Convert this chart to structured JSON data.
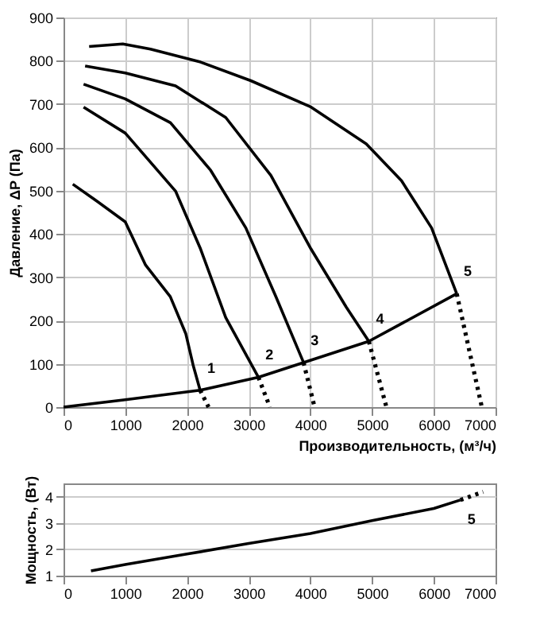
{
  "chart_data": [
    {
      "type": "line",
      "xlabel": "Производительность, (м³/ч)",
      "ylabel": "Давление, ΔP (Па)",
      "xlim": [
        0,
        7000
      ],
      "ylim": [
        0,
        900
      ],
      "xticks": [
        0,
        1000,
        2000,
        3000,
        4000,
        5000,
        6000,
        7000
      ],
      "yticks": [
        0,
        100,
        200,
        300,
        400,
        500,
        600,
        700,
        800,
        900
      ],
      "grid": true,
      "marker": "none",
      "series": [
        {
          "color": "#000000",
          "line_style": "solid",
          "x": [
            150,
            500,
            1000,
            1330,
            1730,
            1980,
            2100,
            2213
          ],
          "values": [
            515,
            480,
            428,
            328,
            255,
            170,
            97,
            39
          ]
        },
        {
          "color": "#000000",
          "line_style": "solid",
          "x": [
            325,
            1000,
            1815,
            2221,
            2628,
            3157
          ],
          "values": [
            693,
            633,
            499,
            365,
            207,
            69
          ]
        },
        {
          "color": "#000000",
          "line_style": "solid",
          "x": [
            325,
            1000,
            1733,
            2384,
            2954,
            3442,
            3889
          ],
          "values": [
            746,
            712,
            657,
            547,
            414,
            255,
            103
          ]
        },
        {
          "color": "#000000",
          "line_style": "solid",
          "x": [
            350,
            1000,
            1815,
            2628,
            3360,
            4011,
            4581,
            4947
          ],
          "values": [
            788,
            772,
            742,
            669,
            535,
            365,
            231,
            152
          ]
        },
        {
          "color": "#000000",
          "line_style": "solid",
          "x": [
            415,
            960,
            1408,
            2221,
            3035,
            4011,
            4906,
            5476,
            5964,
            6371
          ],
          "values": [
            833,
            839,
            827,
            797,
            754,
            693,
            608,
            523,
            414,
            262
          ]
        },
        {
          "color": "#000000",
          "line_style": "dotted",
          "x": [
            2213,
            2350
          ],
          "values": [
            39,
            0
          ]
        },
        {
          "color": "#000000",
          "line_style": "dotted",
          "x": [
            3157,
            3344
          ],
          "values": [
            69,
            0
          ]
        },
        {
          "color": "#000000",
          "line_style": "dotted",
          "x": [
            3889,
            4068
          ],
          "values": [
            103,
            0
          ]
        },
        {
          "color": "#000000",
          "line_style": "dotted",
          "x": [
            4947,
            5232
          ],
          "values": [
            152,
            0
          ]
        },
        {
          "color": "#000000",
          "line_style": "dotted",
          "x": [
            6371,
            6778
          ],
          "values": [
            262,
            0
          ]
        },
        {
          "color": "#000000",
          "line_style": "solid",
          "x": [
            0,
            1000,
            2213,
            3157,
            3889,
            4947,
            6371
          ],
          "values": [
            0,
            17,
            39,
            69,
            103,
            152,
            262
          ]
        }
      ],
      "annotations": [
        {
          "text": "1",
          "x": 2213,
          "y": 39
        },
        {
          "text": "2",
          "x": 3157,
          "y": 69
        },
        {
          "text": "3",
          "x": 3889,
          "y": 103
        },
        {
          "text": "4",
          "x": 4947,
          "y": 152
        },
        {
          "text": "5",
          "x": 6371,
          "y": 262
        }
      ]
    },
    {
      "type": "line",
      "ylabel": "Мощность, (Вт)",
      "xlim": [
        0,
        7000
      ],
      "ylim": [
        1,
        4.5
      ],
      "xticks": [
        0,
        1000,
        2000,
        3000,
        4000,
        5000,
        6000,
        7000
      ],
      "yticks": [
        1,
        2,
        3,
        4
      ],
      "grid": "y",
      "marker": "none",
      "series": [
        {
          "color": "#000000",
          "line_style": "solid",
          "x": [
            445,
            1000,
            2000,
            3000,
            4000,
            5000,
            6000,
            6430
          ],
          "values": [
            1.18,
            1.42,
            1.82,
            2.22,
            2.6,
            3.09,
            3.55,
            3.87
          ]
        },
        {
          "color": "#000000",
          "line_style": "dotted",
          "x": [
            6430,
            6800
          ],
          "values": [
            3.87,
            4.18
          ]
        }
      ],
      "annotations": [
        {
          "text": "5",
          "x": 6430,
          "y": 3.87
        }
      ]
    }
  ]
}
